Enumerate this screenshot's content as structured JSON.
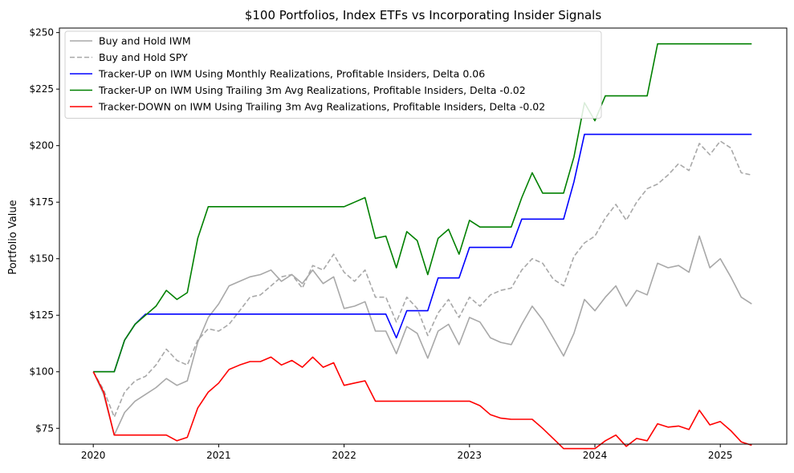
{
  "chart_data": {
    "type": "line",
    "title": "$100 Portfolios, Index ETFs vs Incorporating Insider Signals",
    "xlabel": "",
    "ylabel": "Portfolio Value",
    "xlim": [
      2019.73,
      2025.53
    ],
    "ylim": [
      68,
      252
    ],
    "x_ticks": [
      2020,
      2021,
      2022,
      2023,
      2024,
      2025
    ],
    "x_tick_labels": [
      "2020",
      "2021",
      "2022",
      "2023",
      "2024",
      "2025"
    ],
    "y_ticks": [
      75,
      100,
      125,
      150,
      175,
      200,
      225,
      250
    ],
    "y_tick_labels": [
      "$75",
      "$100",
      "$125",
      "$150",
      "$175",
      "$200",
      "$225",
      "$250"
    ],
    "legend_position": "top-left",
    "series": [
      {
        "name": "Buy and Hold IWM",
        "color": "#a8a8a8",
        "dash": "solid",
        "x": [
          2020.0,
          2020.083,
          2020.167,
          2020.25,
          2020.333,
          2020.417,
          2020.5,
          2020.583,
          2020.667,
          2020.75,
          2020.833,
          2020.917,
          2021.0,
          2021.083,
          2021.167,
          2021.25,
          2021.333,
          2021.417,
          2021.5,
          2021.583,
          2021.667,
          2021.75,
          2021.833,
          2021.917,
          2022.0,
          2022.083,
          2022.167,
          2022.25,
          2022.333,
          2022.417,
          2022.5,
          2022.583,
          2022.667,
          2022.75,
          2022.833,
          2022.917,
          2023.0,
          2023.083,
          2023.167,
          2023.25,
          2023.333,
          2023.417,
          2023.5,
          2023.583,
          2023.667,
          2023.75,
          2023.833,
          2023.917,
          2024.0,
          2024.083,
          2024.167,
          2024.25,
          2024.333,
          2024.417,
          2024.5,
          2024.583,
          2024.667,
          2024.75,
          2024.833,
          2024.917,
          2025.0,
          2025.083,
          2025.167,
          2025.25
        ],
        "y": [
          100,
          90,
          72,
          82,
          87,
          90,
          93,
          97,
          94,
          96,
          113,
          124,
          130,
          138,
          140,
          142,
          143,
          145,
          140,
          143,
          139,
          145,
          139,
          142,
          128,
          129,
          131,
          118,
          118,
          108,
          120,
          117,
          106,
          118,
          121,
          112,
          124,
          122,
          115,
          113,
          112,
          121,
          129,
          123,
          115,
          107,
          117,
          132,
          127,
          133,
          138,
          129,
          136,
          134,
          148,
          146,
          147,
          144,
          160,
          146,
          150,
          142,
          133,
          130
        ]
      },
      {
        "name": "Buy and Hold SPY",
        "color": "#a8a8a8",
        "dash": "dashed",
        "x": [
          2020.0,
          2020.083,
          2020.167,
          2020.25,
          2020.333,
          2020.417,
          2020.5,
          2020.583,
          2020.667,
          2020.75,
          2020.833,
          2020.917,
          2021.0,
          2021.083,
          2021.167,
          2021.25,
          2021.333,
          2021.417,
          2021.5,
          2021.583,
          2021.667,
          2021.75,
          2021.833,
          2021.917,
          2022.0,
          2022.083,
          2022.167,
          2022.25,
          2022.333,
          2022.417,
          2022.5,
          2022.583,
          2022.667,
          2022.75,
          2022.833,
          2022.917,
          2023.0,
          2023.083,
          2023.167,
          2023.25,
          2023.333,
          2023.417,
          2023.5,
          2023.583,
          2023.667,
          2023.75,
          2023.833,
          2023.917,
          2024.0,
          2024.083,
          2024.167,
          2024.25,
          2024.333,
          2024.417,
          2024.5,
          2024.583,
          2024.667,
          2024.75,
          2024.833,
          2024.917,
          2025.0,
          2025.083,
          2025.167,
          2025.25
        ],
        "y": [
          100,
          92,
          80,
          91,
          96,
          98,
          103,
          110,
          105,
          103,
          114,
          119,
          118,
          121,
          127,
          133,
          134,
          138,
          142,
          143,
          137,
          147,
          145,
          152,
          144,
          140,
          145,
          133,
          133,
          122,
          133,
          128,
          116,
          126,
          132,
          124,
          133,
          129,
          134,
          136,
          137,
          145,
          150,
          148,
          141,
          138,
          151,
          157,
          160,
          168,
          174,
          167,
          175,
          181,
          183,
          187,
          192,
          189,
          201,
          196,
          202,
          199,
          188,
          187
        ]
      },
      {
        "name": "Tracker-UP on IWM Using Monthly Realizations, Profitable Insiders, Delta 0.06",
        "color": "#0000ff",
        "dash": "solid",
        "x": [
          2020.0,
          2020.083,
          2020.167,
          2020.25,
          2020.333,
          2020.417,
          2020.5,
          2022.25,
          2022.333,
          2022.417,
          2022.5,
          2022.583,
          2022.667,
          2022.75,
          2022.833,
          2022.917,
          2023.0,
          2023.083,
          2023.333,
          2023.417,
          2023.5,
          2023.583,
          2023.75,
          2023.833,
          2023.917,
          2024.0,
          2025.25
        ],
        "y": [
          100,
          100,
          100,
          114,
          121,
          125.5,
          125.5,
          125.5,
          125.5,
          115,
          127,
          127,
          127,
          141.5,
          141.5,
          141.5,
          155,
          155,
          155,
          167.5,
          167.5,
          167.5,
          167.5,
          184,
          205,
          205,
          205
        ]
      },
      {
        "name": "Tracker-UP on IWM Using Trailing 3m Avg Realizations, Profitable Insiders, Delta -0.02",
        "color": "#008000",
        "dash": "solid",
        "x": [
          2020.0,
          2020.083,
          2020.167,
          2020.25,
          2020.333,
          2020.417,
          2020.5,
          2020.583,
          2020.667,
          2020.75,
          2020.833,
          2020.917,
          2021.0,
          2021.5,
          2022.0,
          2022.083,
          2022.167,
          2022.25,
          2022.333,
          2022.417,
          2022.5,
          2022.583,
          2022.667,
          2022.75,
          2022.833,
          2022.917,
          2023.0,
          2023.083,
          2023.167,
          2023.333,
          2023.417,
          2023.5,
          2023.583,
          2023.667,
          2023.75,
          2023.833,
          2023.917,
          2024.0,
          2024.083,
          2024.25,
          2024.417,
          2024.5,
          2025.25
        ],
        "y": [
          100,
          100,
          100,
          114,
          121,
          125,
          129,
          136,
          132,
          135,
          159,
          173,
          173,
          173,
          173,
          175,
          177,
          159,
          160,
          146,
          162,
          158,
          143,
          159,
          163,
          152,
          167,
          164,
          164,
          164,
          177,
          188,
          179,
          179,
          179,
          195,
          219,
          211,
          222,
          222,
          222,
          245,
          245
        ]
      },
      {
        "name": "Tracker-DOWN on IWM Using Trailing 3m Avg Realizations, Profitable Insiders, Delta -0.02",
        "color": "#ff0000",
        "dash": "solid",
        "x": [
          2020.0,
          2020.083,
          2020.167,
          2020.25,
          2020.583,
          2020.667,
          2020.75,
          2020.833,
          2020.917,
          2021.0,
          2021.083,
          2021.167,
          2021.25,
          2021.333,
          2021.417,
          2021.5,
          2021.583,
          2021.667,
          2021.75,
          2021.833,
          2021.917,
          2022.0,
          2022.083,
          2022.167,
          2022.25,
          2022.917,
          2023.0,
          2023.083,
          2023.167,
          2023.25,
          2023.333,
          2023.5,
          2023.583,
          2023.667,
          2023.75,
          2023.917,
          2024.0,
          2024.083,
          2024.167,
          2024.25,
          2024.333,
          2024.417,
          2024.5,
          2024.583,
          2024.667,
          2024.75,
          2024.833,
          2024.917,
          2025.0,
          2025.083,
          2025.167,
          2025.25
        ],
        "y": [
          100,
          91,
          72,
          72,
          72,
          69.5,
          71,
          84,
          91,
          95,
          101,
          103,
          104.5,
          104.5,
          106.5,
          103,
          105,
          102,
          106.5,
          102,
          104,
          94,
          95,
          96,
          87,
          87,
          87,
          85,
          81,
          79.5,
          79,
          79,
          75,
          70.5,
          66,
          66,
          66,
          69.5,
          72,
          67,
          70.5,
          69.5,
          77,
          75.5,
          76,
          74.5,
          83,
          76.5,
          78,
          74,
          69,
          67.5
        ]
      }
    ]
  }
}
